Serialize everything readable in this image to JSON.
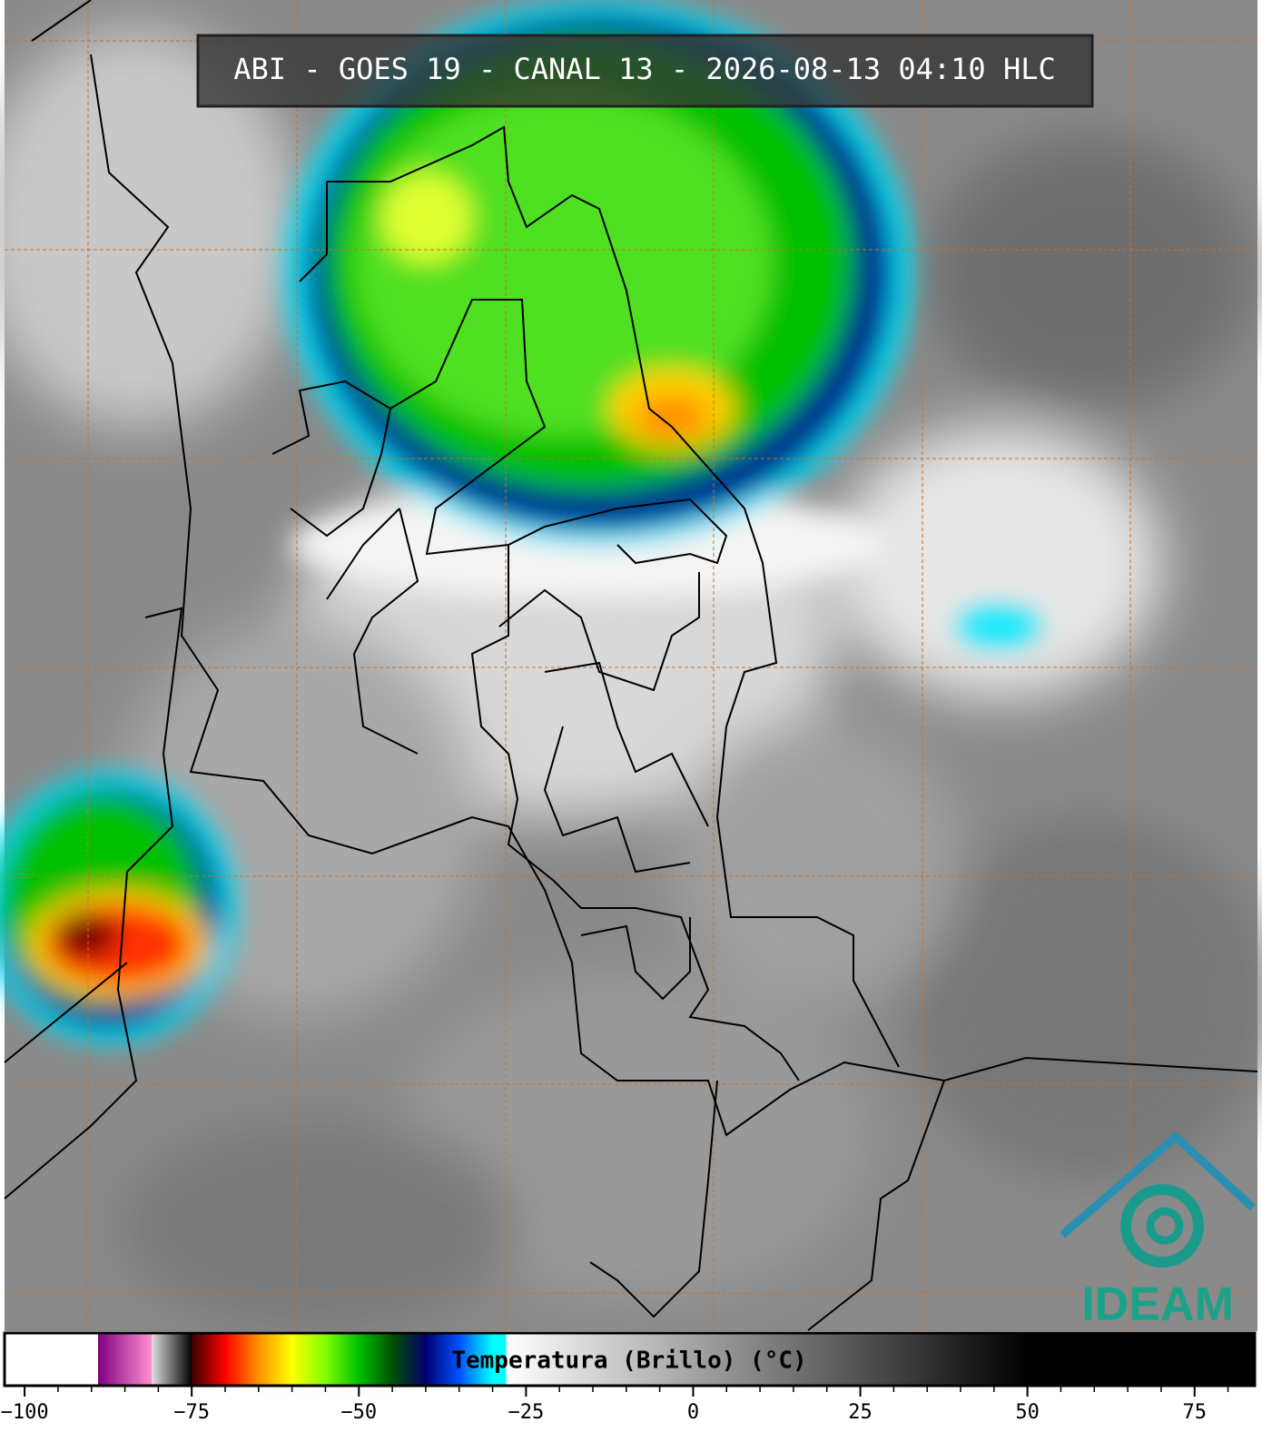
{
  "header": {
    "title": "ABI - GOES 19 - CANAL 13 - 2026-08-13 04:10 HLC"
  },
  "logo": {
    "text": "IDEAM"
  },
  "chart_data": {
    "type": "colorbar",
    "label": "Temperatura (Brillo) (°C)",
    "xlim": [
      -103,
      84
    ],
    "xticks": [
      {
        "value": -100,
        "label": "−100"
      },
      {
        "value": -75,
        "label": "−75"
      },
      {
        "value": -50,
        "label": "−50"
      },
      {
        "value": -25,
        "label": "−25"
      },
      0,
      25,
      50,
      75
    ],
    "xminorticks": [
      -95,
      -90,
      -85,
      -80,
      -70,
      -65,
      -60,
      -55,
      -45,
      -40,
      -35,
      -30,
      -20,
      -15,
      -10,
      -5,
      5,
      10,
      15,
      20,
      30,
      35,
      40,
      45,
      55,
      60,
      65,
      70,
      80
    ],
    "colormap": [
      {
        "value": -103,
        "color": "#ffffff"
      },
      {
        "value": -89,
        "color": "#ffffff"
      },
      {
        "value": -89,
        "color": "#800080"
      },
      {
        "value": -81,
        "color": "#ff90d0"
      },
      {
        "value": -81,
        "color": "#e0e0e0"
      },
      {
        "value": -75,
        "color": "#000000"
      },
      {
        "value": -75,
        "color": "#3a0000"
      },
      {
        "value": -70,
        "color": "#ff0000"
      },
      {
        "value": -65,
        "color": "#ff9000"
      },
      {
        "value": -60,
        "color": "#ffff00"
      },
      {
        "value": -55,
        "color": "#80ff00"
      },
      {
        "value": -50,
        "color": "#00c000"
      },
      {
        "value": -45,
        "color": "#005000"
      },
      {
        "value": -40,
        "color": "#000070"
      },
      {
        "value": -35,
        "color": "#0050ff"
      },
      {
        "value": -30,
        "color": "#00ffff"
      },
      {
        "value": -28,
        "color": "#00ffff"
      },
      {
        "value": -28,
        "color": "#ffffff"
      },
      {
        "value": 50,
        "color": "#000000"
      },
      {
        "value": 84,
        "color": "#000000"
      }
    ]
  }
}
